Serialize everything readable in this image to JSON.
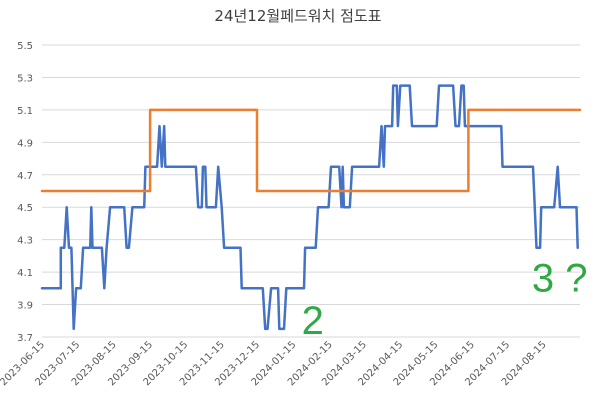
{
  "chart_data": {
    "type": "line",
    "title": "24년12월페드워치 점도표",
    "xlabel": "",
    "ylabel": "",
    "ylim": [
      3.7,
      5.5
    ],
    "yticks": [
      "3.7",
      "3.9",
      "4.1",
      "4.3",
      "4.5",
      "4.7",
      "4.9",
      "5.1",
      "5.3",
      "5.5"
    ],
    "xlim": [
      "2023-06-15",
      "2024-09-15"
    ],
    "xticks": [
      "2023-06-15",
      "2023-07-15",
      "2023-08-15",
      "2023-09-15",
      "2023-10-15",
      "2023-11-15",
      "2023-12-15",
      "2024-01-15",
      "2024-02-15",
      "2024-03-15",
      "2024-04-15",
      "2024-05-15",
      "2024-06-15",
      "2024-07-15",
      "2024-08-15"
    ],
    "grid": "horizontal",
    "legend": "none",
    "series": [
      {
        "color": "#4472c4",
        "points": [
          [
            "2023-06-15",
            4.0
          ],
          [
            "2023-07-01",
            4.0
          ],
          [
            "2023-07-01",
            4.25
          ],
          [
            "2023-07-04",
            4.25
          ],
          [
            "2023-07-06",
            4.5
          ],
          [
            "2023-07-08",
            4.25
          ],
          [
            "2023-07-10",
            4.25
          ],
          [
            "2023-07-12",
            3.75
          ],
          [
            "2023-07-14",
            4.0
          ],
          [
            "2023-07-18",
            4.0
          ],
          [
            "2023-07-20",
            4.25
          ],
          [
            "2023-07-26",
            4.25
          ],
          [
            "2023-07-27",
            4.5
          ],
          [
            "2023-07-28",
            4.25
          ],
          [
            "2023-08-05",
            4.25
          ],
          [
            "2023-08-07",
            4.0
          ],
          [
            "2023-08-09",
            4.25
          ],
          [
            "2023-08-12",
            4.5
          ],
          [
            "2023-08-24",
            4.5
          ],
          [
            "2023-08-26",
            4.25
          ],
          [
            "2023-08-28",
            4.25
          ],
          [
            "2023-08-31",
            4.5
          ],
          [
            "2023-09-10",
            4.5
          ],
          [
            "2023-09-11",
            4.75
          ],
          [
            "2023-09-21",
            4.75
          ],
          [
            "2023-09-23",
            5.0
          ],
          [
            "2023-09-25",
            4.75
          ],
          [
            "2023-09-27",
            5.0
          ],
          [
            "2023-09-28",
            4.75
          ],
          [
            "2023-10-24",
            4.75
          ],
          [
            "2023-10-26",
            4.5
          ],
          [
            "2023-10-29",
            4.5
          ],
          [
            "2023-10-30",
            4.75
          ],
          [
            "2023-11-01",
            4.75
          ],
          [
            "2023-11-02",
            4.5
          ],
          [
            "2023-11-10",
            4.5
          ],
          [
            "2023-11-12",
            4.75
          ],
          [
            "2023-11-15",
            4.5
          ],
          [
            "2023-11-17",
            4.25
          ],
          [
            "2023-12-01",
            4.25
          ],
          [
            "2023-12-02",
            4.0
          ],
          [
            "2023-12-20",
            4.0
          ],
          [
            "2023-12-22",
            3.75
          ],
          [
            "2023-12-24",
            3.75
          ],
          [
            "2023-12-27",
            4.0
          ],
          [
            "2024-01-02",
            4.0
          ],
          [
            "2024-01-03",
            3.75
          ],
          [
            "2024-01-07",
            3.75
          ],
          [
            "2024-01-09",
            4.0
          ],
          [
            "2024-01-24",
            4.0
          ],
          [
            "2024-01-25",
            4.25
          ],
          [
            "2024-02-03",
            4.25
          ],
          [
            "2024-02-05",
            4.5
          ],
          [
            "2024-02-14",
            4.5
          ],
          [
            "2024-02-16",
            4.75
          ],
          [
            "2024-02-23",
            4.75
          ],
          [
            "2024-02-25",
            4.5
          ],
          [
            "2024-02-26",
            4.75
          ],
          [
            "2024-02-27",
            4.5
          ],
          [
            "2024-03-03",
            4.5
          ],
          [
            "2024-03-05",
            4.75
          ],
          [
            "2024-03-28",
            4.75
          ],
          [
            "2024-03-30",
            5.0
          ],
          [
            "2024-04-01",
            4.75
          ],
          [
            "2024-04-02",
            5.0
          ],
          [
            "2024-04-08",
            5.0
          ],
          [
            "2024-04-09",
            5.25
          ],
          [
            "2024-04-12",
            5.25
          ],
          [
            "2024-04-13",
            5.0
          ],
          [
            "2024-04-15",
            5.25
          ],
          [
            "2024-04-23",
            5.25
          ],
          [
            "2024-04-25",
            5.0
          ],
          [
            "2024-05-16",
            5.0
          ],
          [
            "2024-05-18",
            5.25
          ],
          [
            "2024-05-30",
            5.25
          ],
          [
            "2024-06-01",
            5.0
          ],
          [
            "2024-06-04",
            5.0
          ],
          [
            "2024-06-06",
            5.25
          ],
          [
            "2024-06-08",
            5.25
          ],
          [
            "2024-06-09",
            5.0
          ],
          [
            "2024-07-10",
            5.0
          ],
          [
            "2024-07-11",
            4.75
          ],
          [
            "2024-08-06",
            4.75
          ],
          [
            "2024-08-09",
            4.25
          ],
          [
            "2024-08-12",
            4.25
          ],
          [
            "2024-08-13",
            4.5
          ],
          [
            "2024-08-24",
            4.5
          ],
          [
            "2024-08-27",
            4.75
          ],
          [
            "2024-08-29",
            4.5
          ],
          [
            "2024-09-12",
            4.5
          ],
          [
            "2024-09-13",
            4.25
          ]
        ]
      },
      {
        "color": "#ed7d31",
        "points": [
          [
            "2023-06-15",
            4.6
          ],
          [
            "2023-09-15",
            4.6
          ],
          [
            "2023-09-15",
            5.1
          ],
          [
            "2023-12-15",
            5.1
          ],
          [
            "2023-12-15",
            4.6
          ],
          [
            "2024-06-12",
            4.6
          ],
          [
            "2024-06-12",
            5.1
          ],
          [
            "2024-09-15",
            5.1
          ]
        ]
      }
    ],
    "annotations": [
      {
        "text": "2",
        "x": "2024-01-22",
        "y": 3.72,
        "color": "#2eaa44"
      },
      {
        "text": "3 ?",
        "x": "2024-08-05",
        "y": 3.98,
        "color": "#2eaa44"
      }
    ]
  }
}
